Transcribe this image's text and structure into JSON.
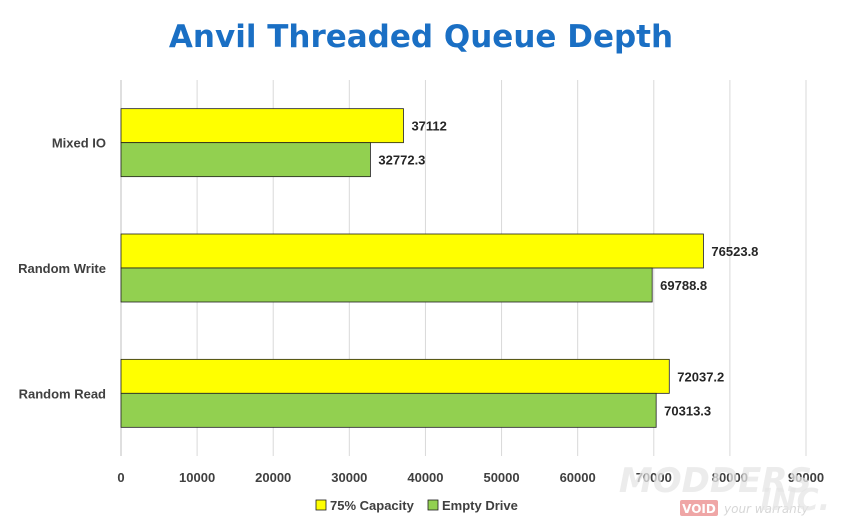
{
  "chart_data": {
    "type": "bar",
    "orientation": "horizontal",
    "title": "Anvil Threaded Queue Depth",
    "categories": [
      "Mixed IO",
      "Random Write",
      "Random Read"
    ],
    "series": [
      {
        "name": "75% Capacity",
        "color": "#ffff00",
        "values": [
          37112,
          76523.8,
          72037.2
        ],
        "labels": [
          "37112",
          "76523.8",
          "72037.2"
        ]
      },
      {
        "name": "Empty Drive",
        "color": "#92d050",
        "values": [
          32772.3,
          69788.8,
          70313.3
        ],
        "labels": [
          "32772.3",
          "69788.8",
          "70313.3"
        ]
      }
    ],
    "xlim": [
      0,
      90000
    ],
    "xticks": [
      0,
      10000,
      20000,
      30000,
      40000,
      50000,
      60000,
      70000,
      80000,
      90000
    ],
    "grid": true,
    "legend_position": "bottom"
  },
  "watermark": {
    "brand_top": "MODDERS",
    "brand_bottom": "INC.",
    "badge": "VOID",
    "tagline": "your warranty"
  }
}
